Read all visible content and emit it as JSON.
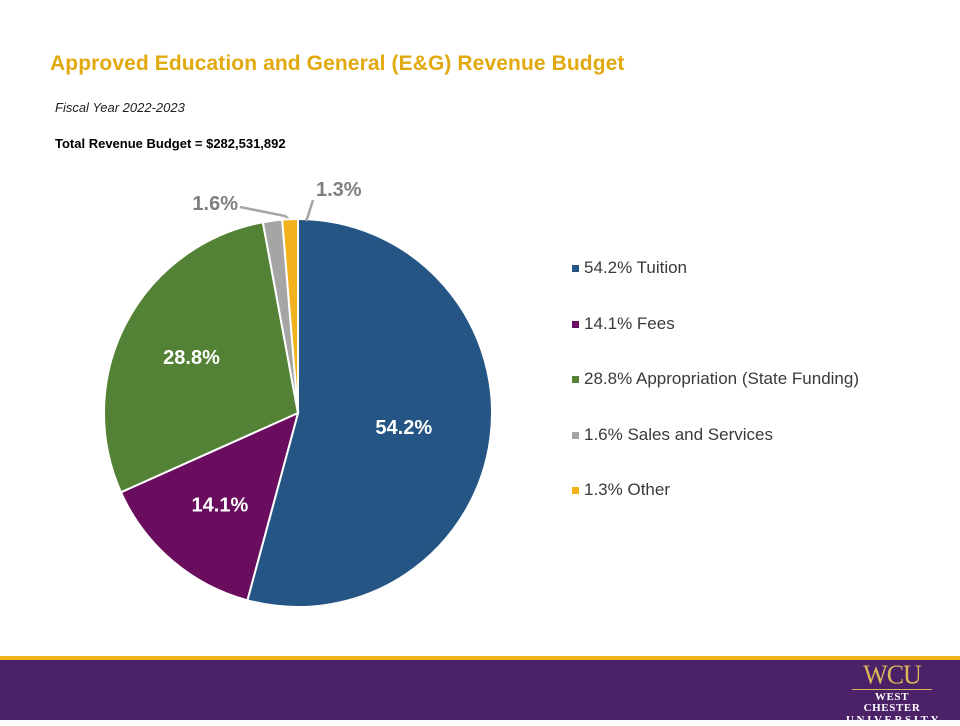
{
  "slide": {
    "title": "Approved Education and General (E&G) Revenue Budget",
    "subtitle": "Fiscal Year 2022-2023",
    "total_label": "Total Revenue Budget = $282,531,892"
  },
  "colors": {
    "title": "#E2A90F",
    "footer_purple": "#4B2168",
    "footer_gold": "#F2B21B",
    "logo_gold": "#D8B85A"
  },
  "logo": {
    "mark": "WCU",
    "line1": "WEST CHESTER",
    "line2": "UNIVERSITY"
  },
  "chart_data": {
    "type": "pie",
    "title": "",
    "start_angle_deg": 0,
    "direction": "clockwise",
    "legend_position": "right",
    "slices": [
      {
        "label": "Tuition",
        "value": 54.2,
        "data_label": "54.2%",
        "legend": "54.2% Tuition",
        "color": "#255584",
        "label_color": "#ffffff"
      },
      {
        "label": "Fees",
        "value": 14.1,
        "data_label": "14.1%",
        "legend": "14.1% Fees",
        "color": "#6A0D5E",
        "label_color": "#ffffff"
      },
      {
        "label": "Appropriation (State Funding)",
        "value": 28.8,
        "data_label": "28.8%",
        "legend": "28.8% Appropriation (State Funding)",
        "color": "#538135",
        "label_color": "#ffffff"
      },
      {
        "label": "Sales and Services",
        "value": 1.6,
        "data_label": "1.6%",
        "legend": "1.6% Sales and Services",
        "color": "#A5A5A5",
        "label_color": "#7F7F7F"
      },
      {
        "label": "Other",
        "value": 1.3,
        "data_label": "1.3%",
        "legend": "1.3% Other",
        "color": "#F2B21B",
        "label_color": "#7F7F7F"
      }
    ]
  }
}
